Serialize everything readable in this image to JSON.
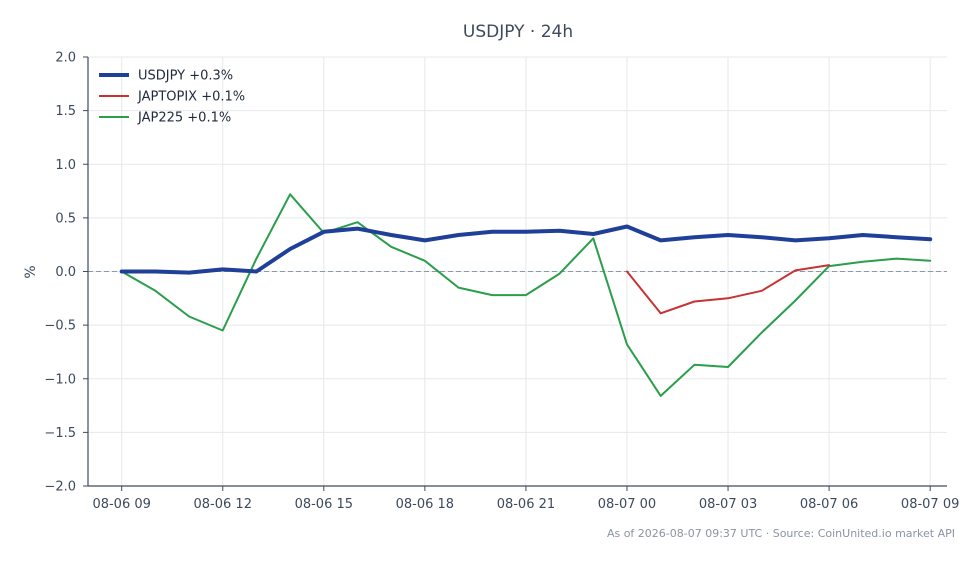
{
  "chart_data": {
    "type": "line",
    "title": "USDJPY · 24h",
    "xlabel": "",
    "ylabel": "%",
    "ylim": [
      -2.0,
      2.0
    ],
    "yticks": [
      -2.0,
      -1.5,
      -1.0,
      -0.5,
      0.0,
      0.5,
      1.0,
      1.5,
      2.0
    ],
    "ytick_labels": [
      "−2.0",
      "−1.5",
      "−1.0",
      "−0.5",
      "0.0",
      "0.5",
      "1.0",
      "1.5",
      "2.0"
    ],
    "xlim": [
      "08-06 08:00",
      "08-07 09:30"
    ],
    "xticks": [
      "08-06 09:00",
      "08-06 12:00",
      "08-06 15:00",
      "08-06 18:00",
      "08-06 21:00",
      "08-07 00:00",
      "08-07 03:00",
      "08-07 06:00",
      "08-07 09:00"
    ],
    "xtick_labels": [
      "08-06 09",
      "08-06 12",
      "08-06 15",
      "08-06 18",
      "08-06 21",
      "08-07 00",
      "08-07 03",
      "08-07 06",
      "08-07 09"
    ],
    "grid": true,
    "reference_line": 0.0,
    "legend": "top-left",
    "series": [
      {
        "name": "USDJPY +0.3%",
        "color": "#1f3f99",
        "x": [
          "08-06 09:00",
          "08-06 10:00",
          "08-06 11:00",
          "08-06 12:00",
          "08-06 13:00",
          "08-06 14:00",
          "08-06 15:00",
          "08-06 16:00",
          "08-06 17:00",
          "08-06 18:00",
          "08-06 19:00",
          "08-06 20:00",
          "08-06 21:00",
          "08-06 22:00",
          "08-06 23:00",
          "08-07 00:00",
          "08-07 01:00",
          "08-07 02:00",
          "08-07 03:00",
          "08-07 04:00",
          "08-07 05:00",
          "08-07 06:00",
          "08-07 07:00",
          "08-07 08:00",
          "08-07 09:00"
        ],
        "values": [
          0.0,
          0.0,
          -0.01,
          0.02,
          0.0,
          0.21,
          0.37,
          0.4,
          0.34,
          0.29,
          0.34,
          0.37,
          0.37,
          0.38,
          0.35,
          0.42,
          0.29,
          0.32,
          0.34,
          0.32,
          0.29,
          0.31,
          0.34,
          0.32,
          0.3
        ]
      },
      {
        "name": "JAPTOPIX +0.1%",
        "color": "#c83232",
        "x": [
          "08-07 00:00",
          "08-07 01:00",
          "08-07 02:00",
          "08-07 03:00",
          "08-07 04:00",
          "08-07 05:00",
          "08-07 06:00"
        ],
        "values": [
          0.0,
          -0.39,
          -0.28,
          -0.25,
          -0.18,
          0.01,
          0.06
        ]
      },
      {
        "name": "JAP225 +0.1%",
        "color": "#2a9e4a",
        "x": [
          "08-06 09:00",
          "08-06 10:00",
          "08-06 11:00",
          "08-06 12:00",
          "08-06 13:00",
          "08-06 14:00",
          "08-06 15:00",
          "08-06 16:00",
          "08-06 17:00",
          "08-06 18:00",
          "08-06 19:00",
          "08-06 20:00",
          "08-06 21:00",
          "08-06 22:00",
          "08-06 23:00",
          "08-07 00:00",
          "08-07 01:00",
          "08-07 02:00",
          "08-07 03:00",
          "08-07 04:00",
          "08-07 05:00",
          "08-07 06:00",
          "08-07 07:00",
          "08-07 08:00",
          "08-07 09:00"
        ],
        "values": [
          0.0,
          -0.18,
          -0.42,
          -0.55,
          0.12,
          0.72,
          0.36,
          0.46,
          0.23,
          0.1,
          -0.15,
          -0.22,
          -0.22,
          -0.02,
          0.31,
          -0.68,
          -1.16,
          -0.87,
          -0.89,
          -0.57,
          -0.27,
          0.05,
          0.09,
          0.12,
          0.1
        ]
      }
    ]
  },
  "footnote": "As of 2026-08-07 09:37 UTC · Source: CoinUnited.io market API"
}
